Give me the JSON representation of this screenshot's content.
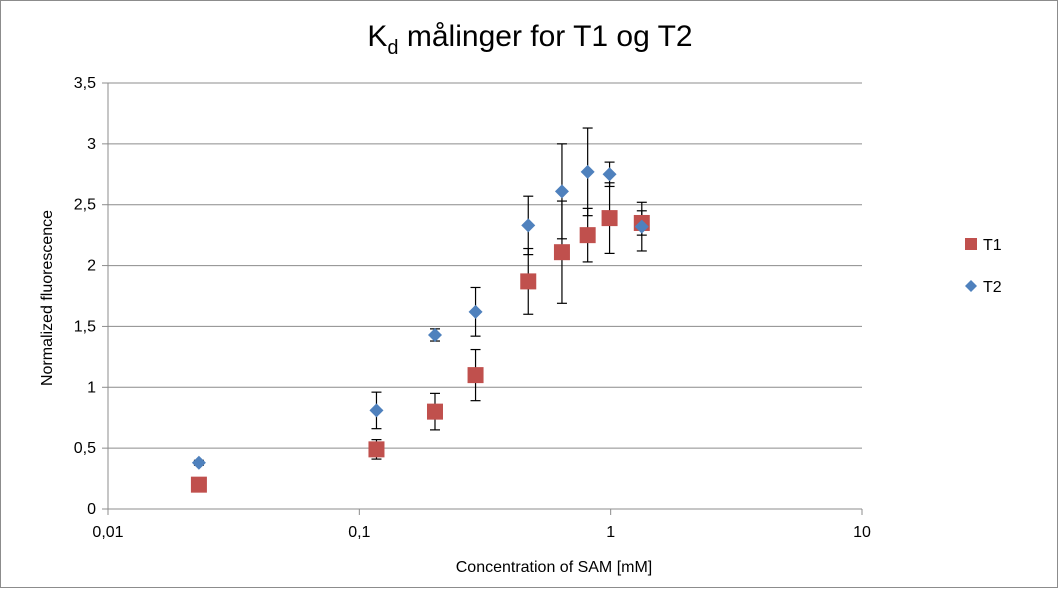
{
  "chart_data": {
    "type": "scatter",
    "title": {
      "main": "K",
      "subscript": "d",
      "rest": " målinger for T1 og T2"
    },
    "xlabel": "Concentration of SAM [mM]",
    "ylabel": "Normalized fluorescence",
    "x_scale": "log",
    "xlim": [
      0.01,
      10
    ],
    "ylim": [
      0,
      3.5
    ],
    "x_ticks": [
      0.01,
      0.1,
      1,
      10
    ],
    "x_tick_labels": [
      "0,01",
      "0,1",
      "1",
      "10"
    ],
    "y_ticks": [
      0,
      0.5,
      1,
      1.5,
      2,
      2.5,
      3,
      3.5
    ],
    "y_tick_labels": [
      "0",
      "0,5",
      "1",
      "1,5",
      "2",
      "2,5",
      "3",
      "3,5"
    ],
    "grid": "horizontal",
    "legend": "right",
    "series": [
      {
        "name": "T1",
        "marker": "square",
        "color": "#c0504d",
        "points": [
          {
            "x": 0.023,
            "y": 0.2,
            "err": null
          },
          {
            "x": 0.117,
            "y": 0.49,
            "err": 0.08
          },
          {
            "x": 0.2,
            "y": 0.8,
            "err": 0.15
          },
          {
            "x": 0.29,
            "y": 1.1,
            "err": 0.21
          },
          {
            "x": 0.47,
            "y": 1.87,
            "err": 0.27
          },
          {
            "x": 0.64,
            "y": 2.11,
            "err": 0.42
          },
          {
            "x": 0.81,
            "y": 2.25,
            "err": 0.22
          },
          {
            "x": 0.99,
            "y": 2.39,
            "err": 0.29
          },
          {
            "x": 1.33,
            "y": 2.35,
            "err": 0.1
          }
        ]
      },
      {
        "name": "T2",
        "marker": "diamond",
        "color": "#4f81bd",
        "points": [
          {
            "x": 0.023,
            "y": 0.38,
            "err": 0.02
          },
          {
            "x": 0.117,
            "y": 0.81,
            "err": 0.15
          },
          {
            "x": 0.2,
            "y": 1.43,
            "err": 0.05
          },
          {
            "x": 0.29,
            "y": 1.62,
            "err": 0.2
          },
          {
            "x": 0.47,
            "y": 2.33,
            "err": 0.24
          },
          {
            "x": 0.64,
            "y": 2.61,
            "err": 0.39
          },
          {
            "x": 0.81,
            "y": 2.77,
            "err": 0.36
          },
          {
            "x": 0.99,
            "y": 2.75,
            "err": 0.1
          },
          {
            "x": 1.33,
            "y": 2.32,
            "err": 0.2
          }
        ]
      }
    ]
  }
}
